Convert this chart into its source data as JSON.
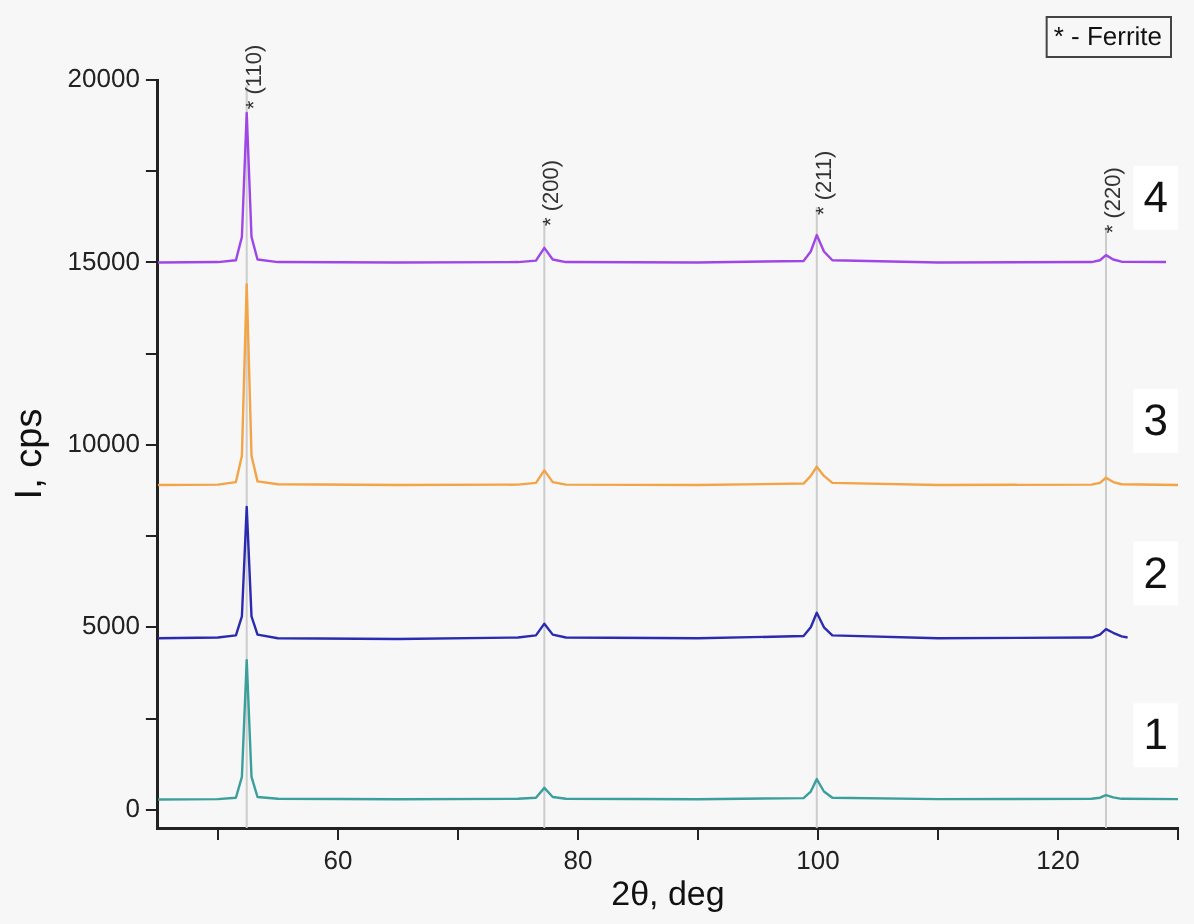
{
  "chart_data": {
    "type": "line",
    "xlabel": "2θ, deg",
    "ylabel": "I, cps",
    "xlim": [
      45,
      130
    ],
    "xticks": [
      {
        "value": 50,
        "label": null
      },
      60,
      {
        "value": 70,
        "label": null
      },
      80,
      {
        "value": 90,
        "label": null
      },
      100,
      {
        "value": 110,
        "label": null
      },
      120,
      {
        "value": 130,
        "label": null
      }
    ],
    "ylim": [
      -500,
      20000
    ],
    "yticks": [
      0,
      {
        "value": 2500,
        "label": null
      },
      5000,
      {
        "value": 7500,
        "label": null
      },
      10000,
      {
        "value": 12500,
        "label": null
      },
      15000,
      {
        "value": 17500,
        "label": null
      },
      20000
    ],
    "grid": false,
    "legend": false,
    "marker": "none",
    "line_style": "solid",
    "series": [
      {
        "name": "4",
        "color": "#a046e8",
        "x": [
          45,
          50,
          51.5,
          52.0,
          52.4,
          52.8,
          53.3,
          55,
          65,
          75,
          76.5,
          77.2,
          77.9,
          79,
          90,
          98.8,
          99.4,
          99.9,
          100.5,
          101.2,
          110,
          122.8,
          123.5,
          124.0,
          124.6,
          125.3,
          129
        ],
        "values": [
          15000,
          15010,
          15060,
          15700,
          19100,
          15700,
          15080,
          15010,
          15000,
          15010,
          15050,
          15400,
          15080,
          15010,
          15000,
          15040,
          15300,
          15750,
          15300,
          15060,
          15000,
          15010,
          15060,
          15200,
          15080,
          15020,
          15010
        ]
      },
      {
        "name": "3",
        "color": "#f2a446",
        "x": [
          45,
          50,
          51.5,
          52.0,
          52.4,
          52.8,
          53.3,
          55,
          65,
          75,
          76.5,
          77.2,
          77.9,
          79,
          90,
          98.8,
          99.4,
          99.9,
          100.5,
          101.2,
          110,
          122.8,
          123.5,
          124.0,
          124.6,
          125.3,
          130
        ],
        "values": [
          8900,
          8910,
          8980,
          9700,
          14400,
          9700,
          9000,
          8920,
          8900,
          8910,
          8960,
          9300,
          8980,
          8910,
          8900,
          8940,
          9150,
          9400,
          9150,
          8960,
          8900,
          8910,
          8960,
          9100,
          8980,
          8920,
          8900
        ]
      },
      {
        "name": "2",
        "color": "#2b2bb0",
        "x": [
          45,
          50,
          51.5,
          52.0,
          52.4,
          52.8,
          53.3,
          55,
          65,
          75,
          76.5,
          77.2,
          77.9,
          79,
          90,
          98.8,
          99.4,
          99.9,
          100.5,
          101.2,
          110,
          122.8,
          123.5,
          124.0,
          124.6,
          125.3,
          125.8
        ],
        "values": [
          4700,
          4720,
          4780,
          5300,
          8300,
          5300,
          4800,
          4700,
          4680,
          4720,
          4780,
          5100,
          4800,
          4720,
          4700,
          4760,
          5000,
          5400,
          5000,
          4780,
          4700,
          4720,
          4800,
          4950,
          4850,
          4750,
          4720
        ]
      },
      {
        "name": "1",
        "color": "#3b9f9c",
        "x": [
          45,
          50,
          51.5,
          52.0,
          52.4,
          52.8,
          53.3,
          55,
          65,
          75,
          76.5,
          77.2,
          77.9,
          79,
          90,
          98.8,
          99.4,
          99.9,
          100.5,
          101.2,
          110,
          122.8,
          123.5,
          124.0,
          124.6,
          125.3,
          130
        ],
        "values": [
          280,
          290,
          330,
          900,
          4100,
          900,
          350,
          300,
          290,
          300,
          330,
          600,
          350,
          300,
          290,
          320,
          500,
          840,
          500,
          330,
          290,
          300,
          330,
          400,
          340,
          300,
          290
        ]
      }
    ],
    "ref_lines": [
      {
        "axis": "x",
        "value": 52.4,
        "color": "#cccccc"
      },
      {
        "axis": "x",
        "value": 77.2,
        "color": "#cccccc"
      },
      {
        "axis": "x",
        "value": 99.9,
        "color": "#cccccc"
      },
      {
        "axis": "x",
        "value": 124.0,
        "color": "#cccccc"
      }
    ],
    "annotations": [
      "* - Ferrite",
      {
        "text": "* (110)",
        "x": 52.4,
        "y": 19200
      },
      {
        "text": "* (200)",
        "x": 77.2,
        "y": 16000
      },
      {
        "text": "* (211)",
        "x": 99.9,
        "y": 16300
      },
      {
        "text": "* (220)",
        "x": 124.0,
        "y": 15800
      }
    ]
  }
}
